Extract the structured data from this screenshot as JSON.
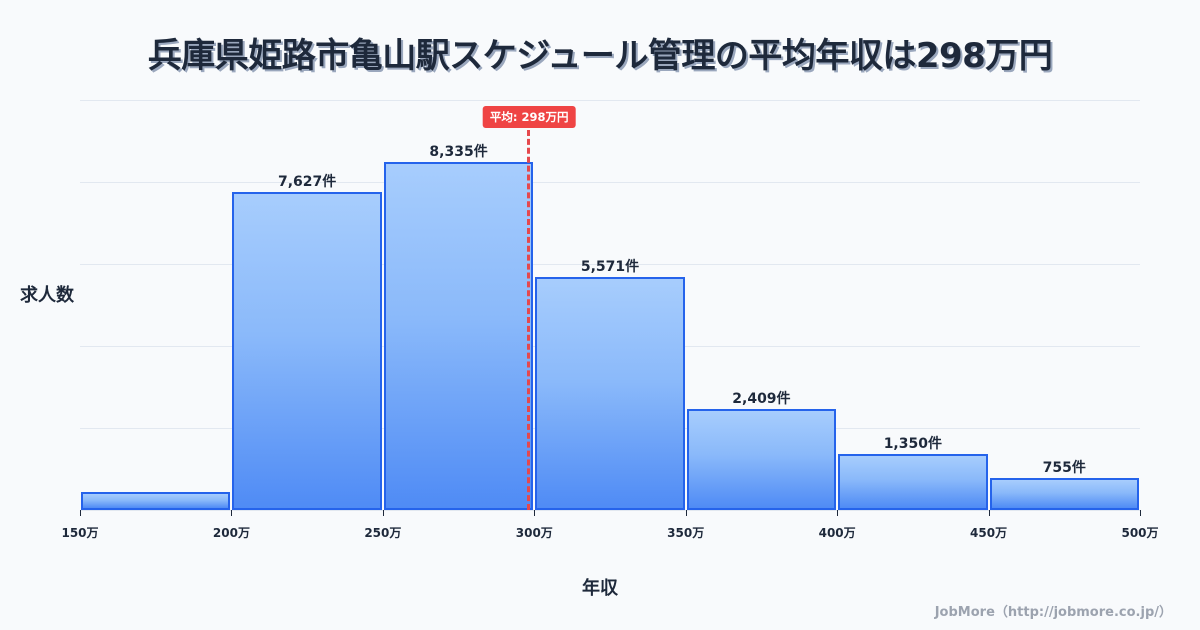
{
  "title": "兵庫県姫路市亀山駅スケジュール管理の平均年収は298万円",
  "y_axis_label": "求人数",
  "x_axis_label": "年収",
  "credit": "JobMore（http://jobmore.co.jp/）",
  "mean_badge": "平均: 298万円",
  "colors": {
    "bar_border": "#2563eb",
    "bar_top": "#a7cdfd",
    "bar_bottom": "#4f8bf5",
    "mean_line": "#e5484d",
    "badge_bg": "#ef4444",
    "background": "#f8fafc",
    "text": "#1e293b"
  },
  "bars": [
    {
      "range": "150万-200万",
      "value": 430,
      "label": ""
    },
    {
      "range": "200万-250万",
      "value": 7627,
      "label": "7,627件"
    },
    {
      "range": "250万-300万",
      "value": 8335,
      "label": "8,335件"
    },
    {
      "range": "300万-350万",
      "value": 5571,
      "label": "5,571件"
    },
    {
      "range": "350万-400万",
      "value": 2409,
      "label": "2,409件"
    },
    {
      "range": "400万-450万",
      "value": 1350,
      "label": "1,350件"
    },
    {
      "range": "450万-500万",
      "value": 755,
      "label": "755件"
    }
  ],
  "ticks": [
    "150万",
    "200万",
    "250万",
    "300万",
    "350万",
    "400万",
    "450万",
    "500万"
  ],
  "chart_data": {
    "type": "bar",
    "title": "兵庫県姫路市亀山駅スケジュール管理の平均年収は298万円",
    "xlabel": "年収",
    "ylabel": "求人数",
    "categories": [
      "150万-200万",
      "200万-250万",
      "250万-300万",
      "300万-350万",
      "350万-400万",
      "400万-450万",
      "450万-500万"
    ],
    "values": [
      430,
      7627,
      8335,
      5571,
      2409,
      1350,
      755
    ],
    "data_labels": [
      "",
      "7,627件",
      "8,335件",
      "5,571件",
      "2,409件",
      "1,350件",
      "755件"
    ],
    "x_ticks": [
      "150万",
      "200万",
      "250万",
      "300万",
      "350万",
      "400万",
      "450万",
      "500万"
    ],
    "xlim": [
      150,
      500
    ],
    "ylim": [
      0,
      9820
    ],
    "grid": true,
    "y_tick_labels_shown": false,
    "annotations": [
      {
        "type": "vline",
        "x": 298,
        "label": "平均: 298万円",
        "style": "dashed",
        "color": "#e5484d"
      }
    ],
    "legend": null,
    "source": "JobMore（http://jobmore.co.jp/）"
  }
}
